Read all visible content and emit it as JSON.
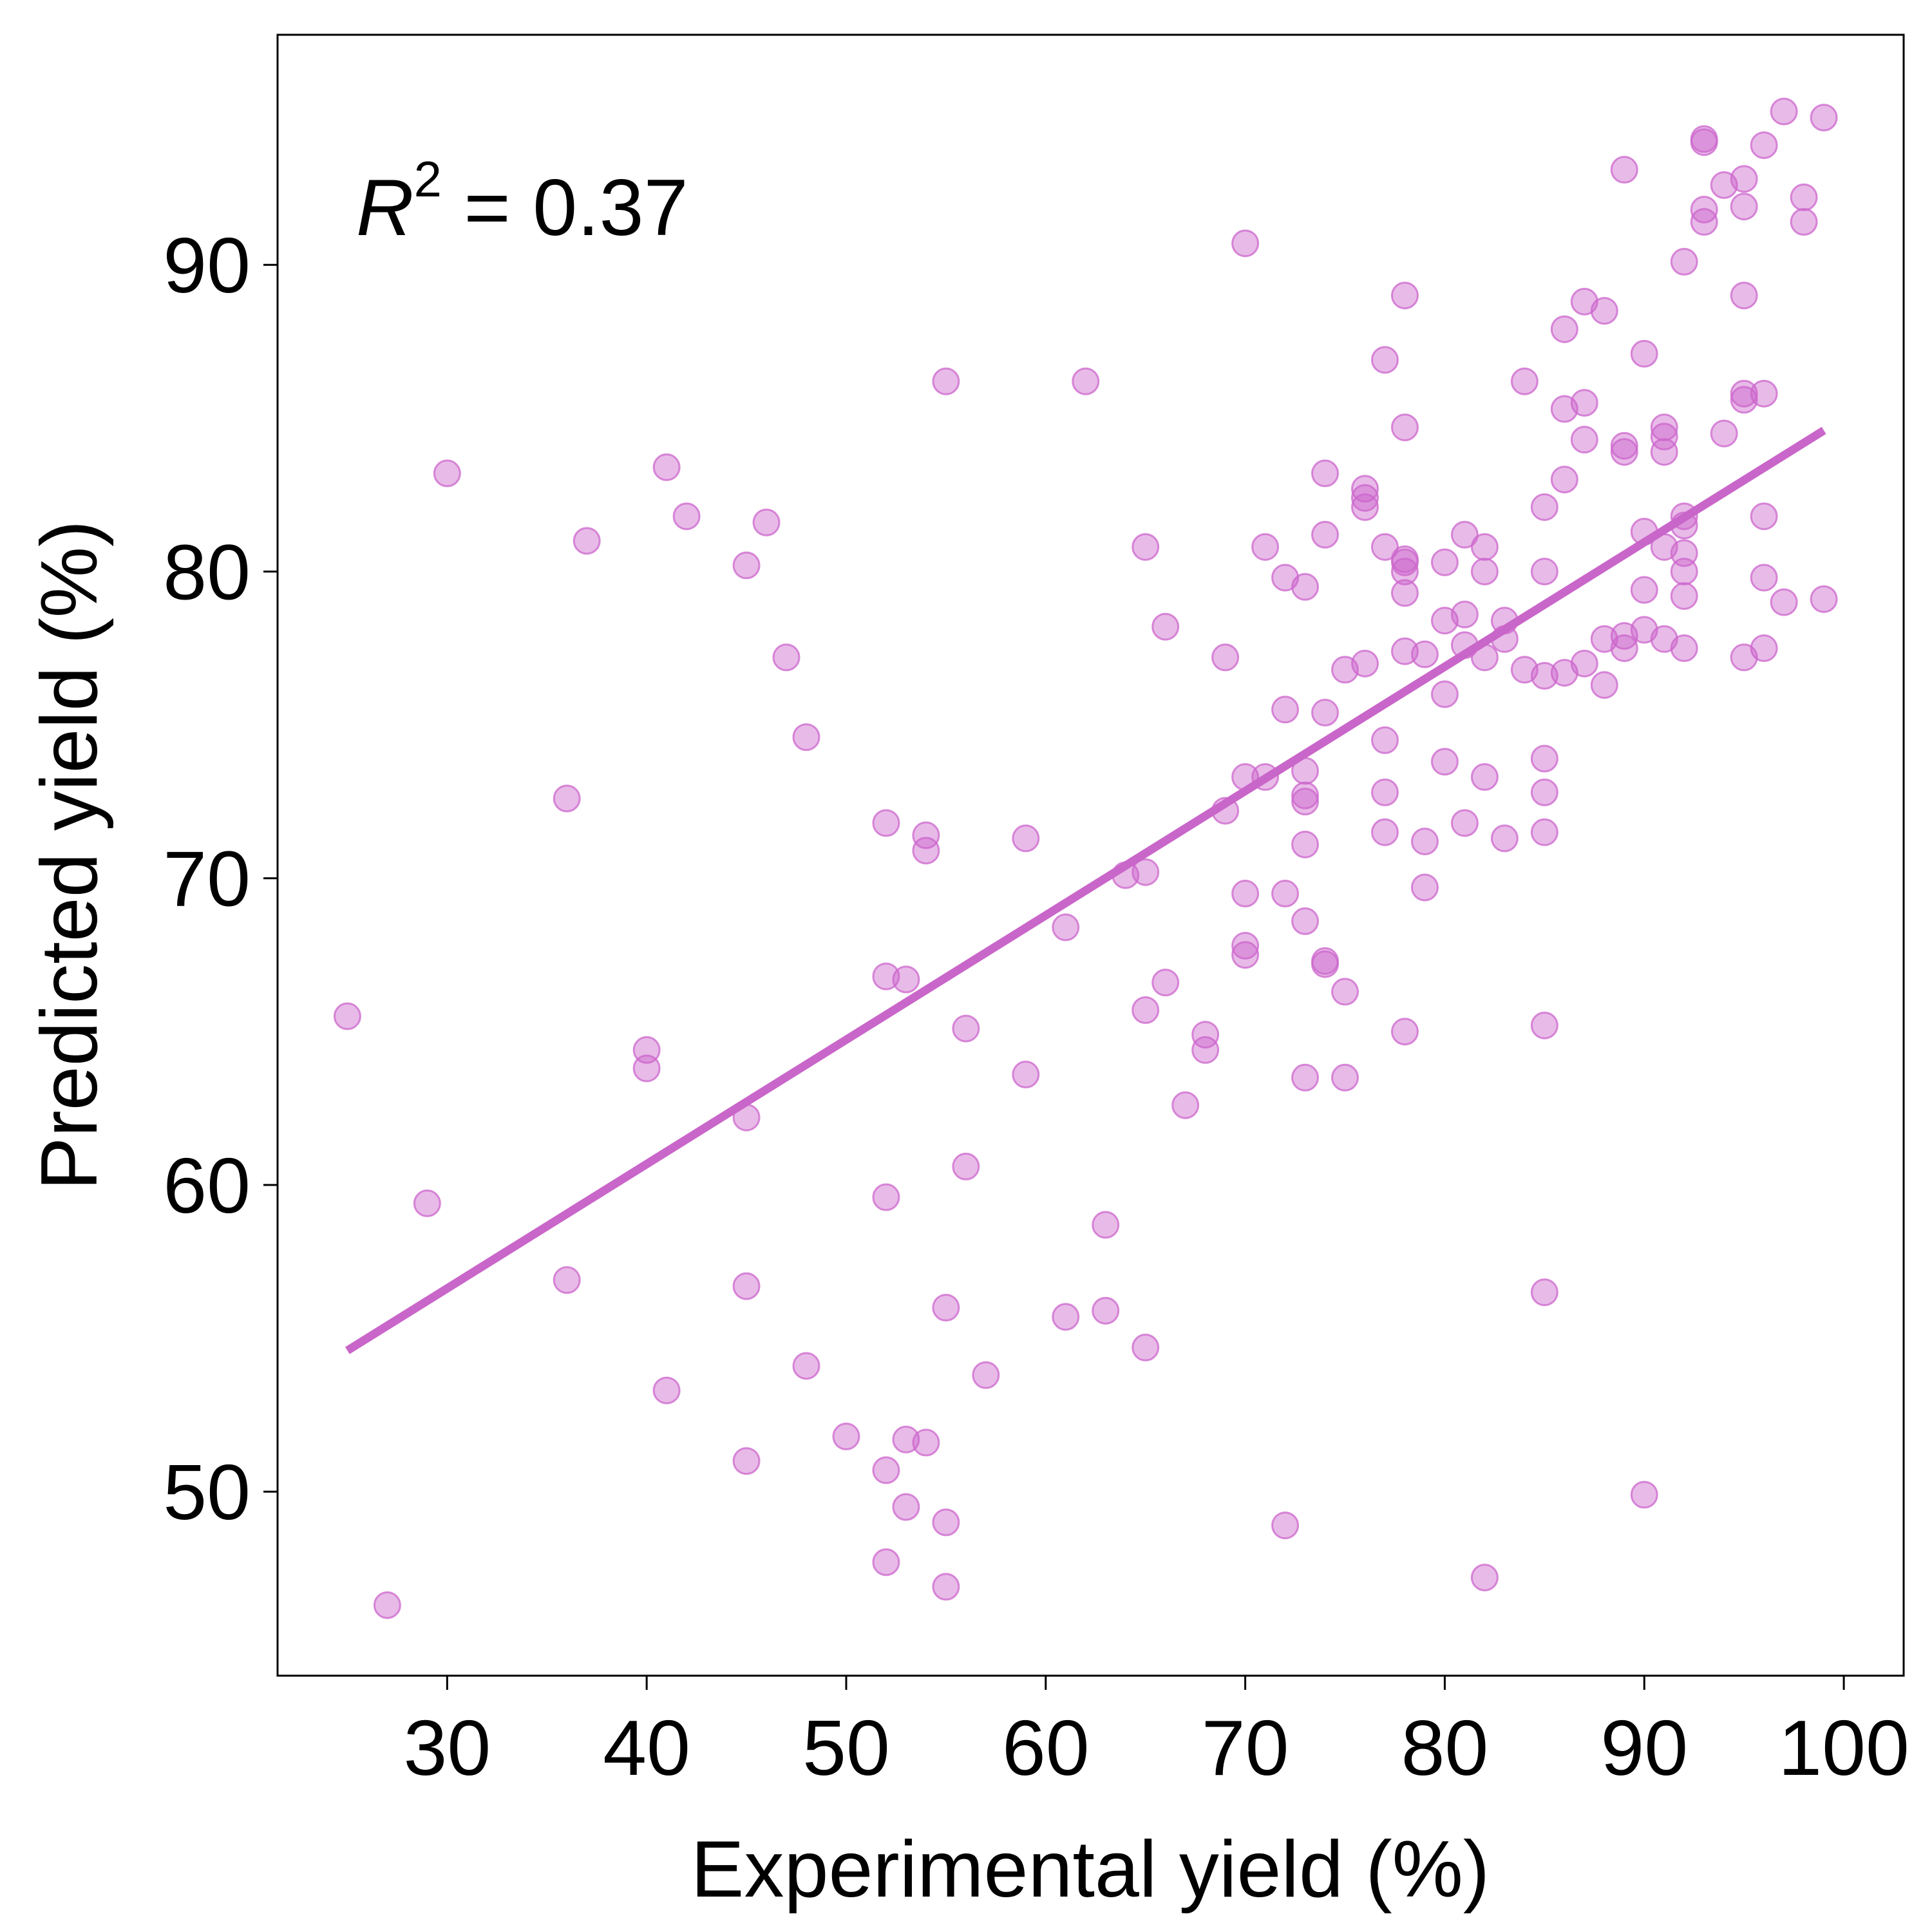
{
  "chart_data": {
    "type": "scatter",
    "title": "",
    "xlabel": "Experimental yield (%)",
    "ylabel": "Predicted yield (%)",
    "xlim": [
      21.5,
      103
    ],
    "ylim": [
      44,
      97.5
    ],
    "xticks": [
      30,
      40,
      50,
      60,
      70,
      80,
      90,
      100
    ],
    "yticks": [
      50,
      60,
      70,
      80,
      90
    ],
    "grid": false,
    "legend": "none",
    "annotation": {
      "symbol": "R",
      "superscript": "2",
      "text": " = 0.37"
    },
    "point_color": "#cc66cc",
    "line_color": "#c966c9",
    "fit_line": {
      "x": [
        25,
        99
      ],
      "y": [
        54.6,
        84.6
      ]
    },
    "points": [
      [
        25,
        65.5
      ],
      [
        27,
        46.3
      ],
      [
        29,
        59.4
      ],
      [
        30,
        83.2
      ],
      [
        36,
        72.6
      ],
      [
        36,
        56.9
      ],
      [
        37,
        81.0
      ],
      [
        40,
        64.4
      ],
      [
        40,
        63.8
      ],
      [
        41,
        83.4
      ],
      [
        41,
        53.3
      ],
      [
        42,
        81.8
      ],
      [
        45,
        80.2
      ],
      [
        45,
        62.2
      ],
      [
        45,
        56.7
      ],
      [
        45,
        51.0
      ],
      [
        46,
        81.6
      ],
      [
        47,
        77.2
      ],
      [
        48,
        74.6
      ],
      [
        48,
        54.1
      ],
      [
        50,
        51.8
      ],
      [
        52,
        71.8
      ],
      [
        52,
        66.8
      ],
      [
        52,
        59.6
      ],
      [
        52,
        50.7
      ],
      [
        52,
        47.7
      ],
      [
        53,
        66.7
      ],
      [
        53,
        51.7
      ],
      [
        53,
        49.5
      ],
      [
        54,
        71.4
      ],
      [
        54,
        70.9
      ],
      [
        54,
        51.6
      ],
      [
        55,
        86.2
      ],
      [
        55,
        56.0
      ],
      [
        55,
        49.0
      ],
      [
        55,
        46.9
      ],
      [
        56,
        65.1
      ],
      [
        56,
        60.6
      ],
      [
        57,
        53.8
      ],
      [
        59,
        71.3
      ],
      [
        59,
        63.6
      ],
      [
        61,
        68.4
      ],
      [
        61,
        55.7
      ],
      [
        62,
        86.2
      ],
      [
        63,
        58.7
      ],
      [
        63,
        55.9
      ],
      [
        64,
        70.1
      ],
      [
        65,
        80.8
      ],
      [
        65,
        70.2
      ],
      [
        65,
        65.7
      ],
      [
        65,
        54.7
      ],
      [
        66,
        78.2
      ],
      [
        66,
        66.6
      ],
      [
        67,
        62.6
      ],
      [
        68,
        64.9
      ],
      [
        68,
        64.4
      ],
      [
        69,
        77.2
      ],
      [
        69,
        72.2
      ],
      [
        70,
        90.7
      ],
      [
        70,
        73.3
      ],
      [
        70,
        69.5
      ],
      [
        70,
        67.8
      ],
      [
        70,
        67.5
      ],
      [
        71,
        80.8
      ],
      [
        71,
        73.3
      ],
      [
        72,
        79.8
      ],
      [
        72,
        75.5
      ],
      [
        72,
        69.5
      ],
      [
        72,
        48.9
      ],
      [
        73,
        79.5
      ],
      [
        73,
        73.5
      ],
      [
        73,
        72.7
      ],
      [
        73,
        72.5
      ],
      [
        73,
        71.1
      ],
      [
        73,
        68.6
      ],
      [
        73,
        63.5
      ],
      [
        74,
        83.2
      ],
      [
        74,
        81.2
      ],
      [
        74,
        75.4
      ],
      [
        74,
        67.3
      ],
      [
        74,
        67.2
      ],
      [
        75,
        76.8
      ],
      [
        75,
        66.3
      ],
      [
        75,
        63.5
      ],
      [
        76,
        82.7
      ],
      [
        76,
        82.4
      ],
      [
        76,
        82.1
      ],
      [
        76,
        77.0
      ],
      [
        77,
        86.9
      ],
      [
        77,
        80.8
      ],
      [
        77,
        74.5
      ],
      [
        77,
        72.8
      ],
      [
        77,
        71.5
      ],
      [
        78,
        89.0
      ],
      [
        78,
        84.7
      ],
      [
        78,
        80.4
      ],
      [
        78,
        80.3
      ],
      [
        78,
        80.0
      ],
      [
        78,
        79.3
      ],
      [
        78,
        77.4
      ],
      [
        78,
        65.0
      ],
      [
        79,
        77.3
      ],
      [
        79,
        71.2
      ],
      [
        79,
        69.7
      ],
      [
        80,
        80.3
      ],
      [
        80,
        78.4
      ],
      [
        80,
        76.0
      ],
      [
        80,
        73.8
      ],
      [
        81,
        81.2
      ],
      [
        81,
        78.6
      ],
      [
        81,
        77.6
      ],
      [
        81,
        71.8
      ],
      [
        82,
        80.8
      ],
      [
        82,
        80.0
      ],
      [
        82,
        77.2
      ],
      [
        82,
        73.3
      ],
      [
        82,
        47.2
      ],
      [
        83,
        78.4
      ],
      [
        83,
        77.8
      ],
      [
        83,
        71.3
      ],
      [
        84,
        86.2
      ],
      [
        84,
        76.8
      ],
      [
        85,
        82.1
      ],
      [
        85,
        80.0
      ],
      [
        85,
        76.6
      ],
      [
        85,
        73.9
      ],
      [
        85,
        72.8
      ],
      [
        85,
        71.5
      ],
      [
        85,
        65.2
      ],
      [
        85,
        56.5
      ],
      [
        86,
        87.9
      ],
      [
        86,
        85.3
      ],
      [
        86,
        83.0
      ],
      [
        86,
        76.7
      ],
      [
        87,
        88.8
      ],
      [
        87,
        85.5
      ],
      [
        87,
        84.3
      ],
      [
        87,
        77.0
      ],
      [
        88,
        88.5
      ],
      [
        88,
        77.8
      ],
      [
        88,
        76.3
      ],
      [
        89,
        93.1
      ],
      [
        89,
        84.1
      ],
      [
        89,
        83.9
      ],
      [
        89,
        77.9
      ],
      [
        89,
        77.5
      ],
      [
        90,
        87.1
      ],
      [
        90,
        81.3
      ],
      [
        90,
        79.4
      ],
      [
        90,
        78.1
      ],
      [
        90,
        49.9
      ],
      [
        91,
        84.7
      ],
      [
        91,
        84.4
      ],
      [
        91,
        83.9
      ],
      [
        91,
        80.8
      ],
      [
        91,
        77.8
      ],
      [
        92,
        90.1
      ],
      [
        92,
        81.8
      ],
      [
        92,
        81.5
      ],
      [
        92,
        80.6
      ],
      [
        92,
        80.0
      ],
      [
        92,
        79.2
      ],
      [
        92,
        77.5
      ],
      [
        93,
        94.1
      ],
      [
        93,
        94.0
      ],
      [
        93,
        91.8
      ],
      [
        93,
        91.4
      ],
      [
        94,
        92.6
      ],
      [
        94,
        84.5
      ],
      [
        95,
        92.8
      ],
      [
        95,
        91.9
      ],
      [
        95,
        89.0
      ],
      [
        95,
        85.8
      ],
      [
        95,
        85.6
      ],
      [
        95,
        77.2
      ],
      [
        96,
        93.9
      ],
      [
        96,
        85.8
      ],
      [
        96,
        81.8
      ],
      [
        96,
        79.8
      ],
      [
        96,
        77.5
      ],
      [
        97,
        95.0
      ],
      [
        97,
        79.0
      ],
      [
        98,
        92.2
      ],
      [
        98,
        91.4
      ],
      [
        99,
        94.8
      ],
      [
        99,
        79.1
      ]
    ]
  }
}
